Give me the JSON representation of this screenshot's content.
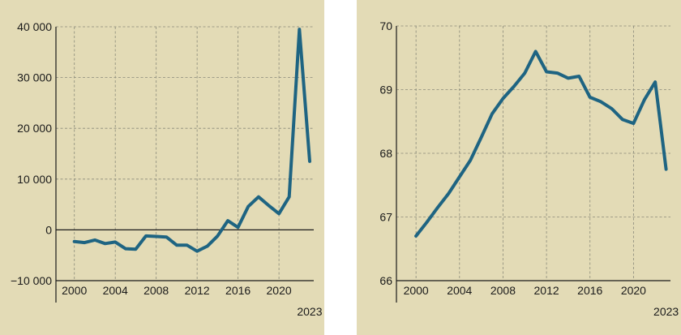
{
  "chart_data": [
    {
      "type": "line",
      "title": "",
      "xlabel": "",
      "ylabel": "",
      "x_ticks": [
        "2000",
        "2004",
        "2008",
        "2012",
        "2016",
        "2020"
      ],
      "x_end_label": "2023",
      "xlim": [
        1998.2,
        2023.4
      ],
      "ylim": [
        -10000,
        40000
      ],
      "y_ticks": [
        -10000,
        0,
        10000,
        20000,
        30000,
        40000
      ],
      "y_tick_labels": [
        "−10 000",
        "0",
        "10 000",
        "20 000",
        "30 000",
        "40 000"
      ],
      "grid": true,
      "line_color": "#1e6482",
      "x": [
        2000,
        2001,
        2002,
        2003,
        2004,
        2005,
        2006,
        2007,
        2008,
        2009,
        2010,
        2011,
        2012,
        2013,
        2014,
        2015,
        2016,
        2017,
        2018,
        2019,
        2020,
        2021,
        2022,
        2023
      ],
      "values": [
        -2300,
        -2500,
        -2000,
        -2700,
        -2400,
        -3700,
        -3800,
        -1200,
        -1300,
        -1400,
        -3000,
        -3000,
        -4200,
        -3200,
        -1200,
        1800,
        500,
        4600,
        6500,
        4800,
        3200,
        6500,
        39500,
        13500
      ]
    },
    {
      "type": "line",
      "title": "",
      "xlabel": "",
      "ylabel": "",
      "x_ticks": [
        "2000",
        "2004",
        "2008",
        "2012",
        "2016",
        "2020"
      ],
      "x_end_label": "2023",
      "xlim": [
        1998.2,
        2023.4
      ],
      "ylim": [
        66,
        70
      ],
      "y_ticks": [
        66,
        67,
        68,
        69,
        70
      ],
      "y_tick_labels": [
        "66",
        "67",
        "68",
        "69",
        "70"
      ],
      "grid": true,
      "line_color": "#1e6482",
      "x": [
        2000,
        2001,
        2002,
        2003,
        2004,
        2005,
        2006,
        2007,
        2008,
        2009,
        2010,
        2011,
        2012,
        2013,
        2014,
        2015,
        2016,
        2017,
        2018,
        2019,
        2020,
        2021,
        2022,
        2023
      ],
      "values": [
        66.7,
        66.92,
        67.15,
        67.37,
        67.63,
        67.89,
        68.25,
        68.62,
        68.86,
        69.05,
        69.26,
        69.6,
        69.28,
        69.26,
        69.18,
        69.21,
        68.88,
        68.81,
        68.7,
        68.53,
        68.47,
        68.84,
        69.12,
        67.75
      ]
    }
  ]
}
